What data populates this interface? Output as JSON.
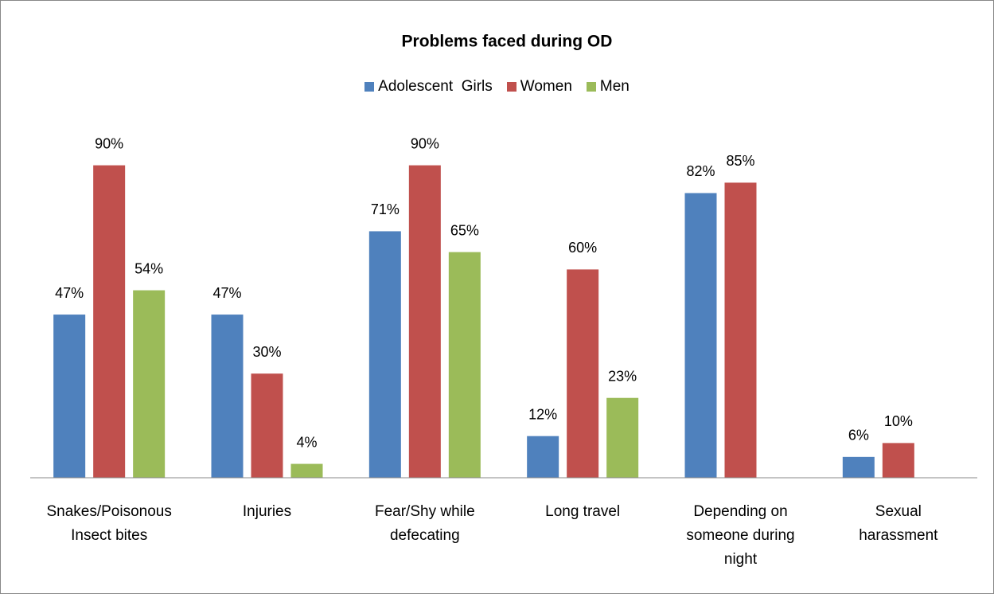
{
  "chart_data": {
    "type": "bar",
    "title": "Problems faced during OD",
    "categories": [
      "Snakes/Poisonous\nInsect bites",
      "Injuries",
      "Fear/Shy while\ndefecating",
      "Long travel",
      "Depending on\nsomeone during\nnight",
      "Sexual\nharassment"
    ],
    "series": [
      {
        "name": "Adolescent  Girls",
        "color": "#4f81bd",
        "values": [
          47,
          47,
          71,
          12,
          82,
          6
        ],
        "value_labels": [
          "47%",
          "47%",
          "71%",
          "12%",
          "82%",
          "6%"
        ]
      },
      {
        "name": "Women",
        "color": "#c0504d",
        "values": [
          90,
          30,
          90,
          60,
          85,
          10
        ],
        "value_labels": [
          "90%",
          "30%",
          "90%",
          "60%",
          "85%",
          "10%"
        ]
      },
      {
        "name": "Men",
        "color": "#9bbb59",
        "values": [
          54,
          4,
          65,
          23,
          null,
          null
        ],
        "value_labels": [
          "54%",
          "4%",
          "65%",
          "23%",
          null,
          null
        ]
      }
    ],
    "ylim": [
      0,
      100
    ],
    "legend": "top"
  }
}
